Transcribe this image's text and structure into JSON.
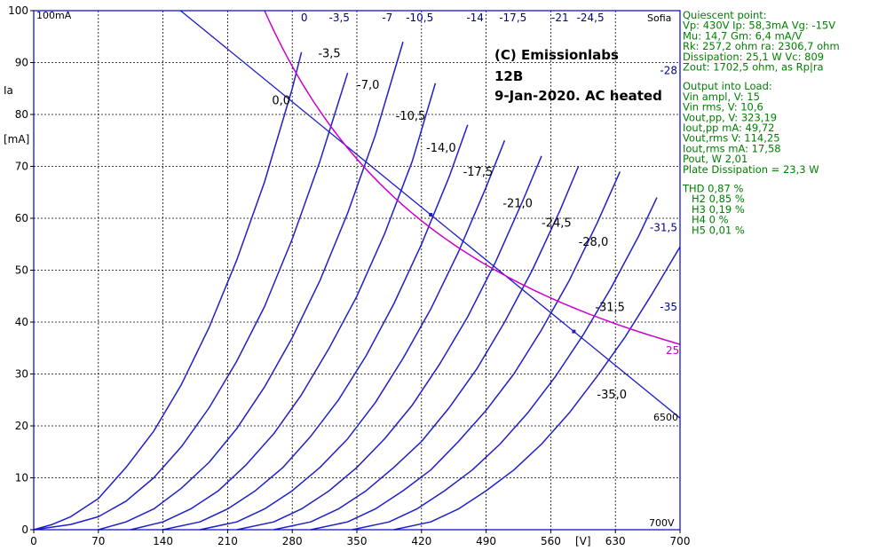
{
  "chart_data": {
    "type": "line",
    "title_lines": [
      "(C) Emissionlabs",
      "12B",
      "9-Jan-2020.  AC heated"
    ],
    "xlabel": "[V]",
    "ylabel_line1": "Ia",
    "ylabel_line2": "[mA]",
    "xlim": [
      0,
      700
    ],
    "ylim": [
      0,
      100
    ],
    "x_ticks": [
      "0",
      "70",
      "140",
      "210",
      "280",
      "350",
      "420",
      "490",
      "560",
      "630",
      "700"
    ],
    "y_ticks": [
      "0",
      "10",
      "20",
      "30",
      "40",
      "50",
      "60",
      "70",
      "80",
      "90",
      "100"
    ],
    "corner_top": "100mA",
    "corner_bottom": "700V",
    "corner_sofia": "Sofia",
    "grid": true,
    "series": [
      {
        "name": "0",
        "x": [
          0,
          20,
          40,
          70,
          100,
          130,
          160,
          190,
          220,
          250,
          280,
          290
        ],
        "y": [
          0,
          1,
          2.5,
          6,
          12,
          19,
          28,
          39,
          52,
          67,
          85,
          92
        ]
      },
      {
        "name": "-3,5",
        "x": [
          0,
          40,
          70,
          100,
          130,
          160,
          190,
          220,
          250,
          280,
          310,
          340
        ],
        "y": [
          0,
          1,
          2.5,
          5.5,
          10,
          16,
          23.5,
          32.5,
          43,
          56,
          71,
          88
        ]
      },
      {
        "name": "-7",
        "x": [
          70,
          100,
          130,
          160,
          190,
          220,
          250,
          280,
          310,
          340,
          370,
          400
        ],
        "y": [
          0,
          1.5,
          4,
          8,
          13,
          19.5,
          27.5,
          37,
          48,
          61,
          76,
          94
        ]
      },
      {
        "name": "-10,5",
        "x": [
          105,
          140,
          170,
          200,
          230,
          260,
          290,
          320,
          350,
          380,
          410,
          435
        ],
        "y": [
          0,
          1.5,
          4,
          7.5,
          12.5,
          18.5,
          26,
          35,
          45,
          57,
          71,
          86
        ]
      },
      {
        "name": "-14",
        "x": [
          140,
          180,
          210,
          240,
          270,
          300,
          330,
          360,
          390,
          420,
          450,
          470
        ],
        "y": [
          0,
          1.5,
          4,
          7.5,
          12,
          18,
          25,
          33.5,
          43.5,
          55,
          68,
          78
        ]
      },
      {
        "name": "-17,5",
        "x": [
          180,
          220,
          250,
          280,
          310,
          340,
          370,
          400,
          430,
          460,
          490,
          510
        ],
        "y": [
          0,
          1.5,
          4,
          7.5,
          12,
          17.5,
          24.5,
          33,
          42.5,
          53.5,
          66,
          75
        ]
      },
      {
        "name": "-21",
        "x": [
          220,
          260,
          290,
          320,
          350,
          380,
          410,
          440,
          470,
          500,
          530,
          550
        ],
        "y": [
          0,
          1.5,
          4,
          7.5,
          12,
          17.5,
          24,
          32,
          41,
          51.5,
          63.5,
          72
        ]
      },
      {
        "name": "-24,5",
        "x": [
          260,
          300,
          330,
          360,
          390,
          420,
          450,
          480,
          510,
          540,
          570,
          590
        ],
        "y": [
          0,
          1.5,
          4,
          7.5,
          12,
          17,
          23.5,
          31,
          40,
          50,
          61.5,
          70
        ]
      },
      {
        "name": "-28",
        "x": [
          300,
          340,
          370,
          400,
          430,
          460,
          490,
          520,
          550,
          580,
          610,
          635
        ],
        "y": [
          0,
          1.5,
          4,
          7.5,
          11.5,
          17,
          23,
          30,
          38.5,
          48,
          59,
          69
        ]
      },
      {
        "name": "-31,5",
        "x": [
          345,
          385,
          415,
          445,
          475,
          505,
          535,
          565,
          595,
          625,
          655,
          675
        ],
        "y": [
          0,
          1.5,
          4,
          7.5,
          11.5,
          16.5,
          22.5,
          29.5,
          37.5,
          46.5,
          56.5,
          64
        ]
      },
      {
        "name": "-35",
        "x": [
          390,
          430,
          460,
          490,
          520,
          550,
          580,
          610,
          640,
          670,
          690,
          700
        ],
        "y": [
          0,
          1.5,
          4,
          7.5,
          11.5,
          16.5,
          22.5,
          29.5,
          37,
          45.5,
          51.5,
          54.5
        ]
      }
    ],
    "curve_labels": [
      {
        "text": "0,0",
        "x": 258,
        "y": 82
      },
      {
        "text": "-3,5",
        "x": 308,
        "y": 91
      },
      {
        "text": "-7,0",
        "x": 350,
        "y": 85
      },
      {
        "text": "-10,5",
        "x": 392,
        "y": 79
      },
      {
        "text": "-14,0",
        "x": 425,
        "y": 72.8
      },
      {
        "text": "-17,5",
        "x": 465,
        "y": 68.2
      },
      {
        "text": "-21,0",
        "x": 508,
        "y": 62.1
      },
      {
        "text": "-24,5",
        "x": 550,
        "y": 58.4
      },
      {
        "text": "-28,0",
        "x": 590,
        "y": 54.7
      },
      {
        "text": "-31,5",
        "x": 608,
        "y": 42.1
      },
      {
        "text": "-35,0",
        "x": 610,
        "y": 25.3
      }
    ],
    "top_labels": [
      {
        "text": "0",
        "x": 293
      },
      {
        "text": "-3,5",
        "x": 331
      },
      {
        "text": "-7",
        "x": 383
      },
      {
        "text": "-10,5",
        "x": 418
      },
      {
        "text": "-14",
        "x": 478
      },
      {
        "text": "-17,5",
        "x": 519
      },
      {
        "text": "-21",
        "x": 570
      },
      {
        "text": "-24,5",
        "x": 603
      }
    ],
    "right_labels": [
      {
        "text": "-28",
        "y": 87.8
      },
      {
        "text": "-31,5",
        "y": 57.5
      },
      {
        "text": "-35",
        "y": 42.2
      }
    ],
    "load_line": {
      "name": "6500",
      "x": [
        159,
        700
      ],
      "y": [
        100,
        21.5
      ],
      "marker_x": [
        430,
        585
      ]
    },
    "dissipation_curve": {
      "name": "25",
      "watts": 25,
      "x_start": 250,
      "x_end": 700
    }
  },
  "info": {
    "section1": [
      "Quiescent point:",
      "Vp: 430V  Ip: 58,3mA  Vg: -15V",
      "Mu: 14,7 Gm: 6,4 mA/V",
      "Rk: 257,2 ohm ra: 2306,7 ohm",
      "Dissipation: 25,1 W Vc: 809",
      "Zout: 1702,5 ohm, as Rp|ra"
    ],
    "section2": [
      "Output into Load:",
      "Vin ampl, V: 15",
      "Vin rms,  V: 10,6",
      "Vout,pp,   V: 323,19",
      "Iout,pp   mA: 49,72",
      "Vout,rms   V: 114,25",
      "Iout,rms  mA: 17,58",
      "Pout, W      2,01",
      "Plate Dissipation = 23,3 W"
    ],
    "section3": [
      "THD 0,87 %",
      "H2 0,85 %",
      "H3 0,19 %",
      "H4 0 %",
      "H5 0,01 %"
    ]
  }
}
